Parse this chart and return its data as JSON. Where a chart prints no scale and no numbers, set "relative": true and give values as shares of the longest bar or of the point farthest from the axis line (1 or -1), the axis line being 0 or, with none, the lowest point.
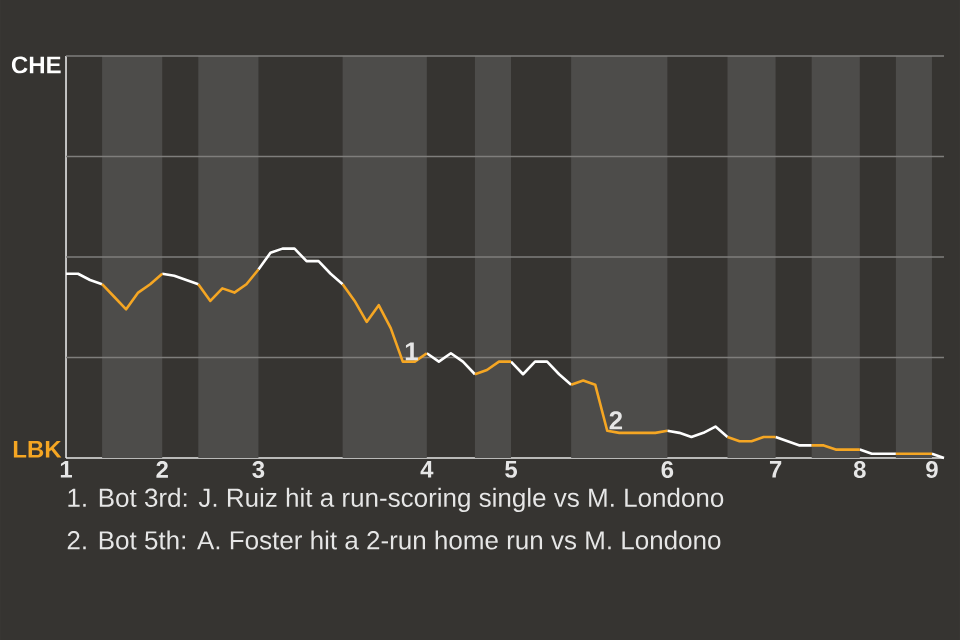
{
  "chart_data": {
    "type": "line",
    "relative": true,
    "categories": [
      "1",
      null,
      null,
      null,
      null,
      null,
      null,
      null,
      "2",
      null,
      null,
      null,
      null,
      null,
      null,
      null,
      "3",
      null,
      null,
      null,
      null,
      null,
      null,
      null,
      null,
      null,
      null,
      null,
      null,
      null,
      "4",
      null,
      null,
      null,
      null,
      null,
      null,
      "5",
      null,
      null,
      null,
      null,
      null,
      null,
      null,
      null,
      null,
      null,
      null,
      null,
      "6",
      null,
      null,
      null,
      null,
      null,
      null,
      null,
      null,
      "7",
      null,
      null,
      null,
      null,
      null,
      null,
      "8",
      null,
      null,
      null,
      null,
      null,
      "9",
      null
    ],
    "ref_lines": [
      {
        "axis": "y",
        "value": 0.48,
        "color": "#7f7e7c"
      },
      {
        "axis": "y",
        "value": 0.96,
        "color": "#7f7e7c"
      },
      {
        "axis": "y",
        "value": 1.44,
        "color": "#7f7e7c"
      },
      {
        "axis": "y",
        "value": 1.92,
        "color": "#7f7e7c"
      }
    ],
    "series": [
      {
        "color": "#ffffff",
        "values": [
          0.88,
          0.88,
          0.85,
          0.83,
          null,
          null,
          null,
          null,
          0.88,
          0.87,
          0.85,
          0.83,
          null,
          null,
          null,
          null,
          0.9,
          0.98,
          1,
          1,
          0.94,
          0.94,
          0.88,
          0.83,
          null,
          null,
          null,
          null,
          null,
          null,
          0.5,
          0.46,
          0.5,
          0.46,
          0.4,
          null,
          null,
          0.46,
          0.4,
          0.46,
          0.46,
          0.4,
          0.35,
          null,
          null,
          null,
          null,
          null,
          null,
          null,
          0.13,
          0.12,
          0.1,
          0.12,
          0.15,
          0.1,
          null,
          null,
          null,
          0.1,
          0.08,
          0.06,
          0.06,
          null,
          null,
          null,
          0.04,
          0.02,
          0.02,
          0.02,
          null,
          null,
          0.02,
          0
        ]
      },
      {
        "color": "#f5a623",
        "values": [
          null,
          null,
          null,
          0.83,
          0.77,
          0.71,
          0.79,
          0.83,
          0.88,
          null,
          null,
          0.83,
          0.75,
          0.81,
          0.79,
          0.83,
          0.9,
          null,
          null,
          null,
          null,
          null,
          null,
          0.83,
          0.75,
          0.65,
          0.73,
          0.62,
          0.46,
          0.46,
          0.5,
          null,
          null,
          null,
          0.4,
          0.42,
          0.46,
          0.46,
          null,
          null,
          null,
          null,
          0.35,
          0.37,
          0.35,
          0.13,
          0.12,
          0.12,
          0.12,
          0.12,
          0.13,
          null,
          null,
          null,
          null,
          0.1,
          0.08,
          0.08,
          0.1,
          0.1,
          null,
          null,
          0.06,
          0.06,
          0.04,
          0.04,
          0.04,
          null,
          null,
          0.02,
          0.02,
          0.02,
          0.02,
          null
        ]
      }
    ],
    "annotations": [
      "CHE",
      "LBK",
      {
        "text": "1",
        "y": 0.46
      },
      {
        "text": "2",
        "y": 0.13
      },
      "1. Bot 3rd: J. Ruiz hit a run-scoring single vs M. Londono",
      "2. Bot 5th: A. Foster hit a 2-run home run vs M. Londono"
    ]
  }
}
